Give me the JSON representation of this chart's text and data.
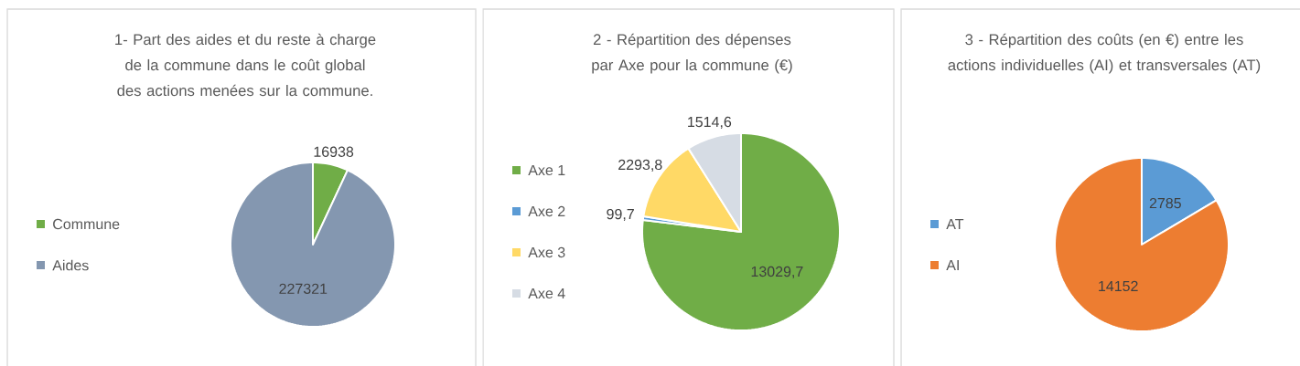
{
  "chart_data": [
    {
      "type": "pie",
      "title": "1- Part des aides et du reste à charge de la commune dans le coût global des actions menées sur la commune.",
      "categories": [
        "Commune",
        "Aides"
      ],
      "values": [
        16938,
        227321
      ],
      "colors": [
        "#70ad47",
        "#8497b0"
      ],
      "value_labels": [
        "16938",
        "227321"
      ],
      "legend": "left"
    },
    {
      "type": "pie",
      "title": "2 - Répartition des dépenses par Axe pour la commune (€)",
      "categories": [
        "Axe 1",
        "Axe 2",
        "Axe 3",
        "Axe 4"
      ],
      "values": [
        13029.7,
        99.7,
        2293.8,
        1514.6
      ],
      "colors": [
        "#70ad47",
        "#5b9bd5",
        "#ffd966",
        "#d6dce4"
      ],
      "value_labels": [
        "13029,7",
        "99,7",
        "2293,8",
        "1514,6"
      ],
      "legend": "left"
    },
    {
      "type": "pie",
      "title": "3 - Répartition des coûts (en €) entre les actions individuelles (AI) et transversales (AT)",
      "categories": [
        "AT",
        "AI"
      ],
      "values": [
        2785,
        14152
      ],
      "colors": [
        "#5b9bd5",
        "#ed7d31"
      ],
      "value_labels": [
        "2785",
        "14152"
      ],
      "legend": "left"
    }
  ]
}
